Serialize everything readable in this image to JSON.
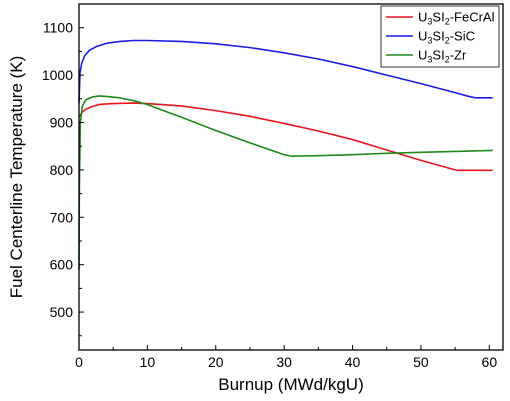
{
  "chart_data": {
    "type": "line",
    "xlabel": "Burnup (MWd/kgU)",
    "ylabel": "Fuel Centerline Temperature (K)",
    "xlim": [
      0,
      62
    ],
    "ylim": [
      420,
      1150
    ],
    "x_ticks": [
      0,
      10,
      20,
      30,
      40,
      50,
      60
    ],
    "y_ticks": [
      500,
      600,
      700,
      800,
      900,
      1000,
      1100
    ],
    "grid": false,
    "legend_position": "top-right",
    "series": [
      {
        "name": "U3SI2-FeCrAl",
        "legend": {
          "base": "U",
          "sub1": "3",
          "mid": "SI",
          "sub2": "2",
          "suffix": "-FeCrAl"
        },
        "color": "#e8141b",
        "x": [
          0,
          0.5,
          1,
          2,
          3,
          5,
          8,
          10,
          15,
          20,
          25,
          30,
          35,
          40,
          45,
          50,
          55,
          55.5,
          60.5
        ],
        "y": [
          912,
          922,
          928,
          934,
          938,
          940,
          941,
          940,
          935,
          925,
          913,
          898,
          882,
          864,
          842,
          820,
          800,
          799,
          799
        ]
      },
      {
        "name": "U3SI2-SiC",
        "legend": {
          "base": "U",
          "sub1": "3",
          "mid": "SI",
          "sub2": "2",
          "suffix": "-SiC"
        },
        "color": "#1a1ee0",
        "x": [
          0,
          0.15,
          0.4,
          0.8,
          1.5,
          2.5,
          4,
          6,
          8,
          10,
          15,
          20,
          25,
          30,
          35,
          40,
          45,
          50,
          55,
          57,
          58,
          60.5
        ],
        "y": [
          940,
          1005,
          1025,
          1040,
          1052,
          1060,
          1067,
          1071,
          1073,
          1073,
          1071,
          1066,
          1058,
          1047,
          1034,
          1018,
          1000,
          982,
          963,
          955,
          952,
          952
        ]
      },
      {
        "name": "U3SI2-Zr",
        "legend": {
          "base": "U",
          "sub1": "3",
          "mid": "SI",
          "sub2": "2",
          "suffix": "-Zr"
        },
        "color": "#1e8a1e",
        "x": [
          0,
          0.05,
          0.2,
          0.5,
          1,
          2,
          3,
          4,
          6,
          8,
          10,
          12,
          15,
          20,
          25,
          30,
          31,
          35,
          40,
          45,
          50,
          55,
          60.5
        ],
        "y": [
          590,
          760,
          900,
          935,
          948,
          954,
          956,
          955,
          952,
          946,
          938,
          927,
          911,
          883,
          857,
          832,
          829,
          830,
          832,
          835,
          837,
          839,
          841
        ]
      }
    ]
  }
}
